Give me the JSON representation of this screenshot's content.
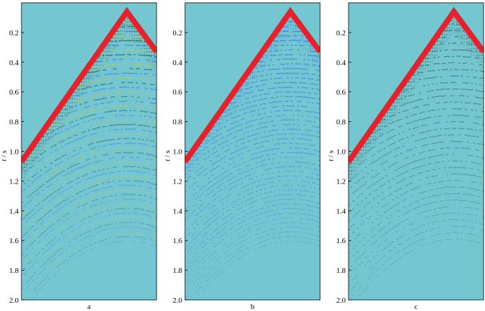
{
  "colors": {
    "background": "#74c7d1",
    "first_arrival": "#e8202a",
    "wave_dark": "#2a5a4a",
    "wave_blue": "#3a78e0",
    "wave_yellow": "#d8c23a",
    "axis": "#000000"
  },
  "y_axis": {
    "label_italic": "t",
    "label_rest": " / s",
    "range": [
      0.0,
      2.0
    ],
    "ticks": [
      {
        "value": 0.2,
        "label": "0.2"
      },
      {
        "value": 0.4,
        "label": "0.4"
      },
      {
        "value": 0.6,
        "label": "0.6"
      },
      {
        "value": 0.8,
        "label": "0.8"
      },
      {
        "value": 1.0,
        "label": "1.0"
      },
      {
        "value": 1.2,
        "label": "1.2"
      },
      {
        "value": 1.4,
        "label": "1.4"
      },
      {
        "value": 1.6,
        "label": "1.6"
      },
      {
        "value": 1.8,
        "label": "1.8"
      },
      {
        "value": 2.0,
        "label": "2.0"
      }
    ]
  },
  "panels": [
    {
      "label": "a",
      "apex_time": 0.06,
      "left_time": 1.07,
      "right_time": 0.33,
      "style": "mixed"
    },
    {
      "label": "b",
      "apex_time": 0.06,
      "left_time": 1.07,
      "right_time": 0.33,
      "style": "blue"
    },
    {
      "label": "c",
      "apex_time": 0.06,
      "left_time": 1.07,
      "right_time": 0.33,
      "style": "sparse"
    }
  ]
}
